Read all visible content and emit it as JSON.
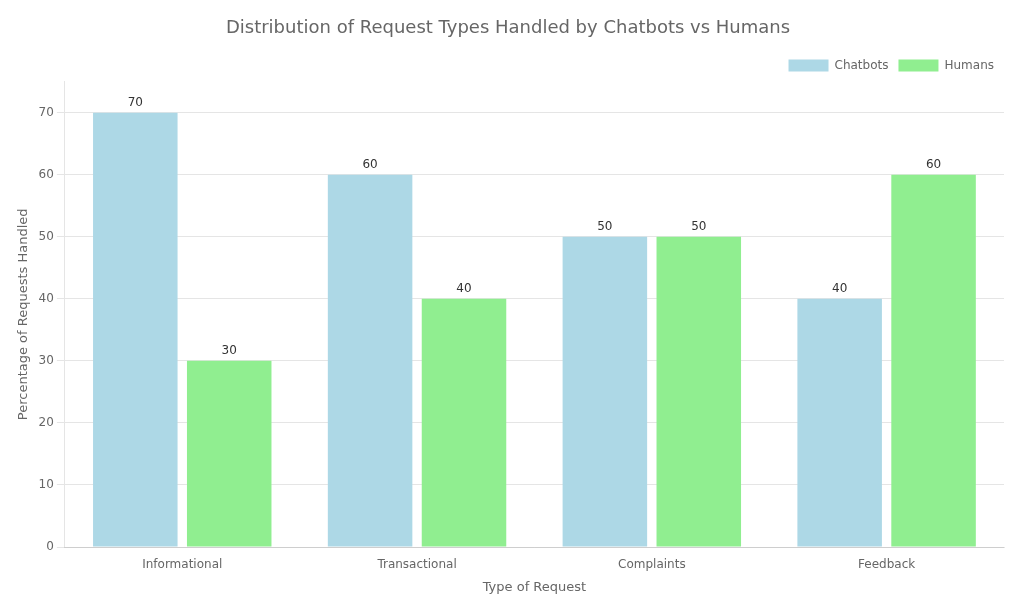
{
  "chart_data": {
    "type": "bar",
    "title": "Distribution of Request Types Handled by Chatbots vs Humans",
    "xlabel": "Type of Request",
    "ylabel": "Percentage of Requests Handled",
    "categories": [
      "Informational",
      "Transactional",
      "Complaints",
      "Feedback"
    ],
    "series": [
      {
        "name": "Chatbots",
        "color": "#ADD8E6",
        "values": [
          70,
          60,
          50,
          40
        ]
      },
      {
        "name": "Humans",
        "color": "#90EE90",
        "values": [
          30,
          40,
          50,
          60
        ]
      }
    ],
    "ylim": [
      0,
      75
    ],
    "yticks": [
      0,
      10,
      20,
      30,
      40,
      50,
      60,
      70
    ],
    "grid": true,
    "legend": "upper right",
    "data_labels": true
  }
}
